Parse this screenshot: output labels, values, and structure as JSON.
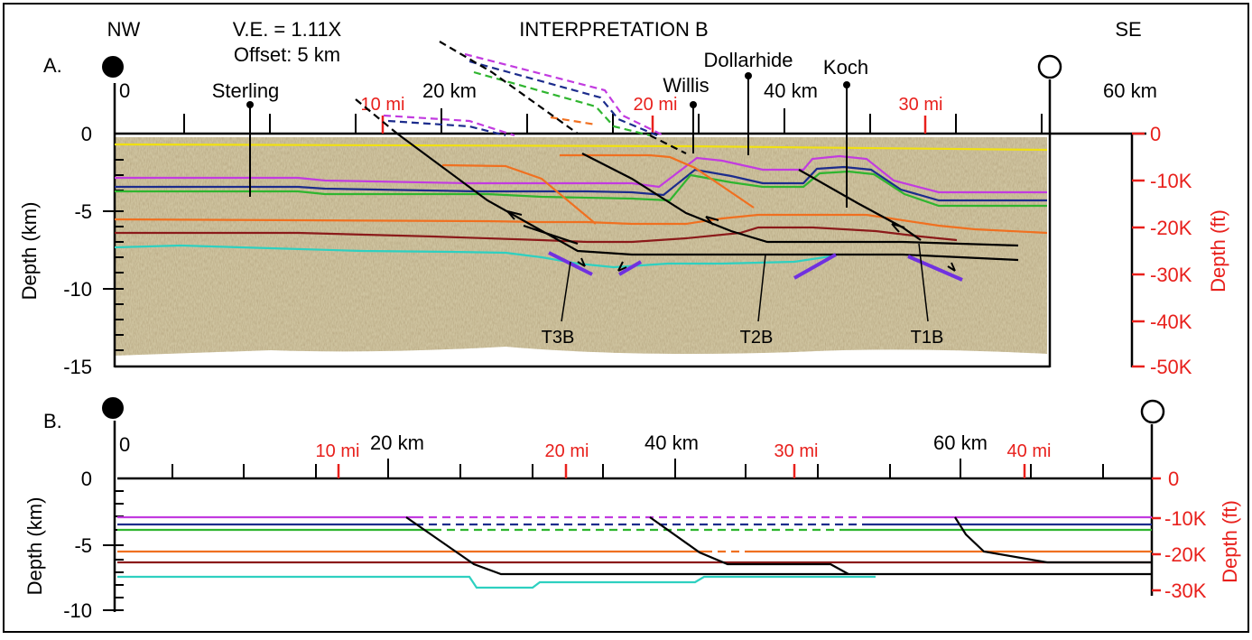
{
  "title": "INTERPRETATION B",
  "direction": {
    "left": "NW",
    "right": "SE"
  },
  "vertical_exaggeration": "V.E. = 1.11X",
  "offset": "Offset:  5 km",
  "panel_a": {
    "label": "A.",
    "km_labels": [
      "0",
      "20 km",
      "40 km",
      "60 km"
    ],
    "mi_labels": [
      "10 mi",
      "20 mi",
      "30 mi"
    ],
    "depth_km_ticks": [
      "0",
      "-5",
      "-10",
      "-15"
    ],
    "depth_ft_ticks": [
      "0",
      "-10K",
      "-20K",
      "-30K",
      "-40K",
      "-50K"
    ],
    "left_axis_label": "Depth (km)",
    "right_axis_label": "Depth (ft)",
    "wells": [
      "Sterling",
      "Willis",
      "Dollarhide",
      "Koch"
    ],
    "faults": [
      "T3B",
      "T2B",
      "T1B"
    ]
  },
  "panel_b": {
    "label": "B.",
    "km_labels": [
      "0",
      "20 km",
      "40 km",
      "60 km"
    ],
    "mi_labels": [
      "10 mi",
      "20 mi",
      "30 mi",
      "40 mi"
    ],
    "depth_km_ticks": [
      "0",
      "-5",
      "-10"
    ],
    "depth_ft_ticks": [
      "0",
      "-10K",
      "-20K",
      "-30K"
    ],
    "left_axis_label": "Depth (km)",
    "right_axis_label": "Depth (ft)"
  },
  "colors": {
    "purple": "#c23be0",
    "blue": "#1c2c8c",
    "green": "#2fb52f",
    "orange": "#f07020",
    "maroon": "#8b1a1a",
    "cyan": "#2ed0c0",
    "yellow": "#f0e010",
    "fault_violet": "#7030e0",
    "ft_axis": "#e8201c",
    "seismic_bg": "#cfc4a0"
  }
}
